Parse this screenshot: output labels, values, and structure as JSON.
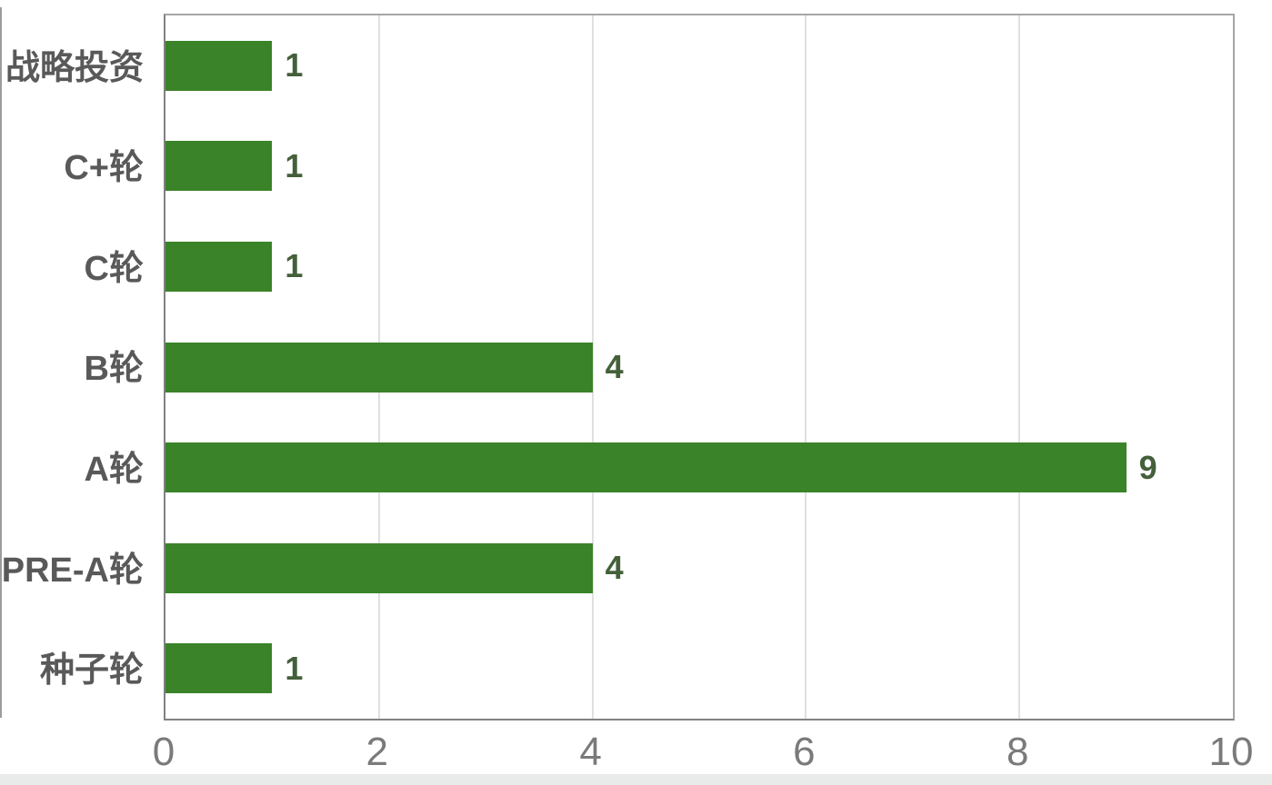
{
  "chart_data": {
    "type": "bar",
    "orientation": "horizontal",
    "title": "",
    "xlabel": "",
    "ylabel": "",
    "categories": [
      "战略投资",
      "C+轮",
      "C轮",
      "B轮",
      "A轮",
      "PRE-A轮",
      "种子轮"
    ],
    "values": [
      1,
      1,
      1,
      4,
      9,
      4,
      1
    ],
    "xlim": [
      0,
      10
    ],
    "x_ticks": [
      0,
      2,
      4,
      6,
      8,
      10
    ],
    "grid": "vertical-only",
    "legend": "none",
    "data_labels_shown": true,
    "colors": {
      "bar": "#3a8328",
      "data_label": "#44603a",
      "category_label": "#595959",
      "tick_label": "#7a7a7a",
      "gridline": "#e0e0e0",
      "plot_border": "#a6a6a6",
      "axis_line": "#818181",
      "background": "#ffffff"
    }
  }
}
